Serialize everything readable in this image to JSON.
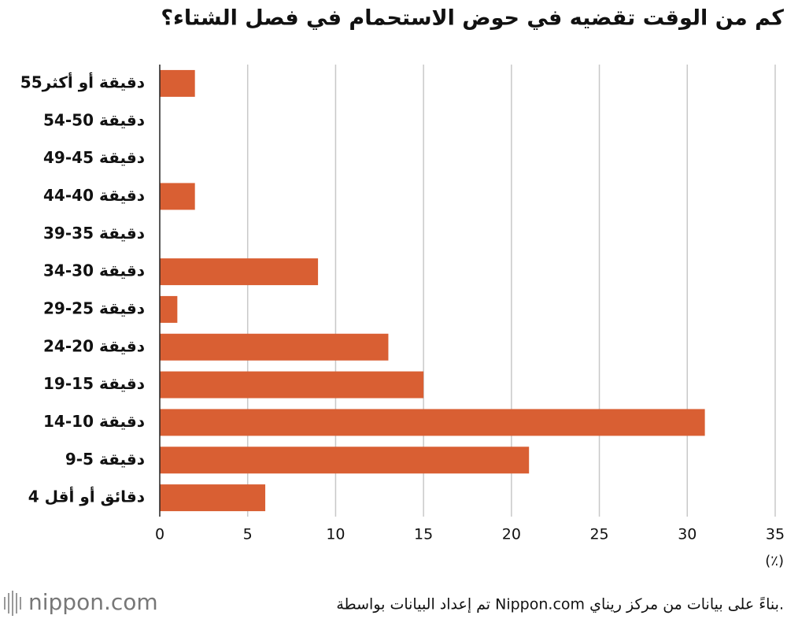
{
  "chart_data": {
    "type": "hbar",
    "title": "كم من الوقت تقضيه في حوض الاستحمام في فصل الشتاء؟",
    "categories": [
      "55دقيقة أو أكثر",
      "54-50 دقيقة",
      "49-45 دقيقة",
      "44-40 دقيقة",
      "39-35 دقيقة",
      "34-30 دقيقة",
      "29-25 دقيقة",
      "24-20 دقيقة",
      "19-15 دقيقة",
      "14-10 دقيقة",
      "9-5 دقيقة",
      "4 دقائق أو أقل"
    ],
    "values": [
      2,
      0,
      0,
      2,
      0,
      9,
      1,
      13,
      15,
      31,
      21,
      6
    ],
    "color": "#d95f33",
    "xlim": [
      0,
      35
    ],
    "xticks": [
      0,
      5,
      10,
      15,
      20,
      25,
      30,
      35
    ],
    "x_label": "(٪)",
    "grid": true,
    "source": "تم إعداد البيانات بواسطة Nippon.com بناءً على بيانات من مركز ريناي.",
    "logo": "nippon.com"
  }
}
